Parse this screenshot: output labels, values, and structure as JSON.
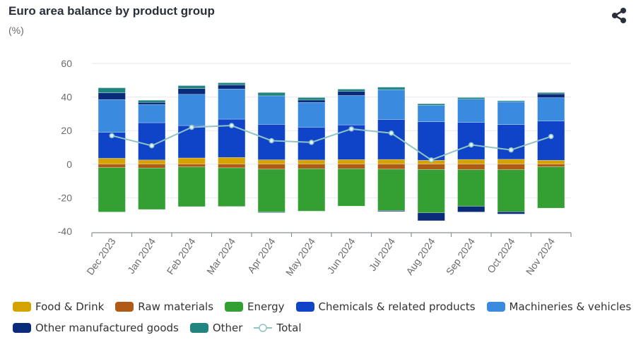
{
  "header": {
    "title": "Euro area balance by product group",
    "subtitle": "(%)",
    "share_icon": "share-icon"
  },
  "chart_data": {
    "type": "bar",
    "stacked": true,
    "title": "Euro area balance by product group",
    "subtitle": "(%)",
    "xlabel": "",
    "ylabel": "",
    "ylim": [
      -40,
      60
    ],
    "yticks": [
      60,
      40,
      20,
      0,
      -20,
      -40
    ],
    "ytick_labels": [
      "60",
      "40",
      "20",
      "0",
      "-20",
      "-40"
    ],
    "grid": true,
    "legend_position": "bottom",
    "categories": [
      "Dec 2023",
      "Jan 2024",
      "Feb 2024",
      "Mar 2024",
      "Apr 2024",
      "May 2024",
      "Jun 2024",
      "Jul 2024",
      "Aug 2024",
      "Sep 2024",
      "Oct 2024",
      "Nov 2024"
    ],
    "series": [
      {
        "name": "Food & Drink",
        "color": "#d4a300",
        "values": [
          3.5,
          2.5,
          3.7,
          4.0,
          2.6,
          2.5,
          2.7,
          2.8,
          2.3,
          2.8,
          2.9,
          2.3
        ]
      },
      {
        "name": "Raw materials",
        "color": "#b05a18",
        "values": [
          -2.0,
          -2.3,
          -1.7,
          -2.2,
          -3.0,
          -2.7,
          -2.7,
          -3.0,
          -3.2,
          -3.3,
          -3.3,
          -1.6
        ]
      },
      {
        "name": "Energy",
        "color": "#34a034",
        "values": [
          -26.5,
          -24.7,
          -23.6,
          -23.0,
          -25.6,
          -25.3,
          -22.3,
          -24.7,
          -25.8,
          -21.8,
          -25.1,
          -24.6
        ]
      },
      {
        "name": "Chemicals & related products",
        "color": "#0f44c8",
        "values": [
          15.5,
          22.2,
          19.3,
          22.8,
          21.1,
          19.5,
          20.7,
          23.8,
          23.0,
          22.1,
          20.7,
          23.4
        ]
      },
      {
        "name": "Machineries & vehicles",
        "color": "#3a8be0",
        "values": [
          19.5,
          10.8,
          18.6,
          18.0,
          17.0,
          14.8,
          17.5,
          17.8,
          9.8,
          13.8,
          13.6,
          13.9
        ]
      },
      {
        "name": "Other manufactured goods",
        "color": "#0a2a7a",
        "values": [
          4.0,
          1.3,
          3.4,
          2.4,
          -0.3,
          1.4,
          2.5,
          -0.5,
          -4.7,
          -3.4,
          -1.3,
          2.3
        ]
      },
      {
        "name": "Other",
        "color": "#20847f",
        "values": [
          3.0,
          1.3,
          1.8,
          1.3,
          2.0,
          1.5,
          1.3,
          1.5,
          0.9,
          1.0,
          0.6,
          0.8
        ]
      }
    ],
    "line_series": {
      "name": "Total",
      "color": "#8fc4c4",
      "values": [
        17.0,
        11.0,
        22.0,
        23.0,
        14.0,
        13.0,
        21.0,
        18.5,
        2.5,
        11.5,
        8.5,
        16.5
      ]
    }
  }
}
